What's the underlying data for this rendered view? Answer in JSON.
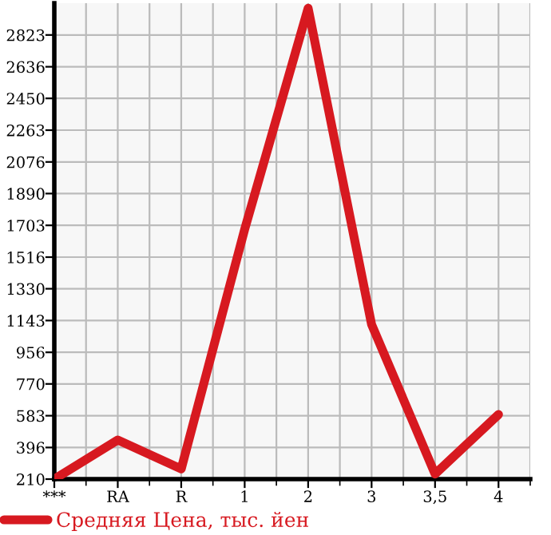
{
  "chart_data": {
    "type": "line",
    "categories": [
      "***",
      "RA",
      "R",
      "1",
      "2",
      "3",
      "3,5",
      "4"
    ],
    "series": [
      {
        "name": "Средняя Цена, тыс. йен",
        "color": "#d71920",
        "values": [
          210,
          440,
          270,
          1680,
          2980,
          1120,
          240,
          590
        ]
      }
    ],
    "ylim": [
      210,
      3010
    ],
    "yticks": [
      210,
      396,
      583,
      770,
      956,
      1143,
      1330,
      1516,
      1703,
      1890,
      2076,
      2263,
      2450,
      2636,
      2823
    ],
    "grid": true,
    "legend": "bottom",
    "marker": "none",
    "line_style": "solid"
  }
}
